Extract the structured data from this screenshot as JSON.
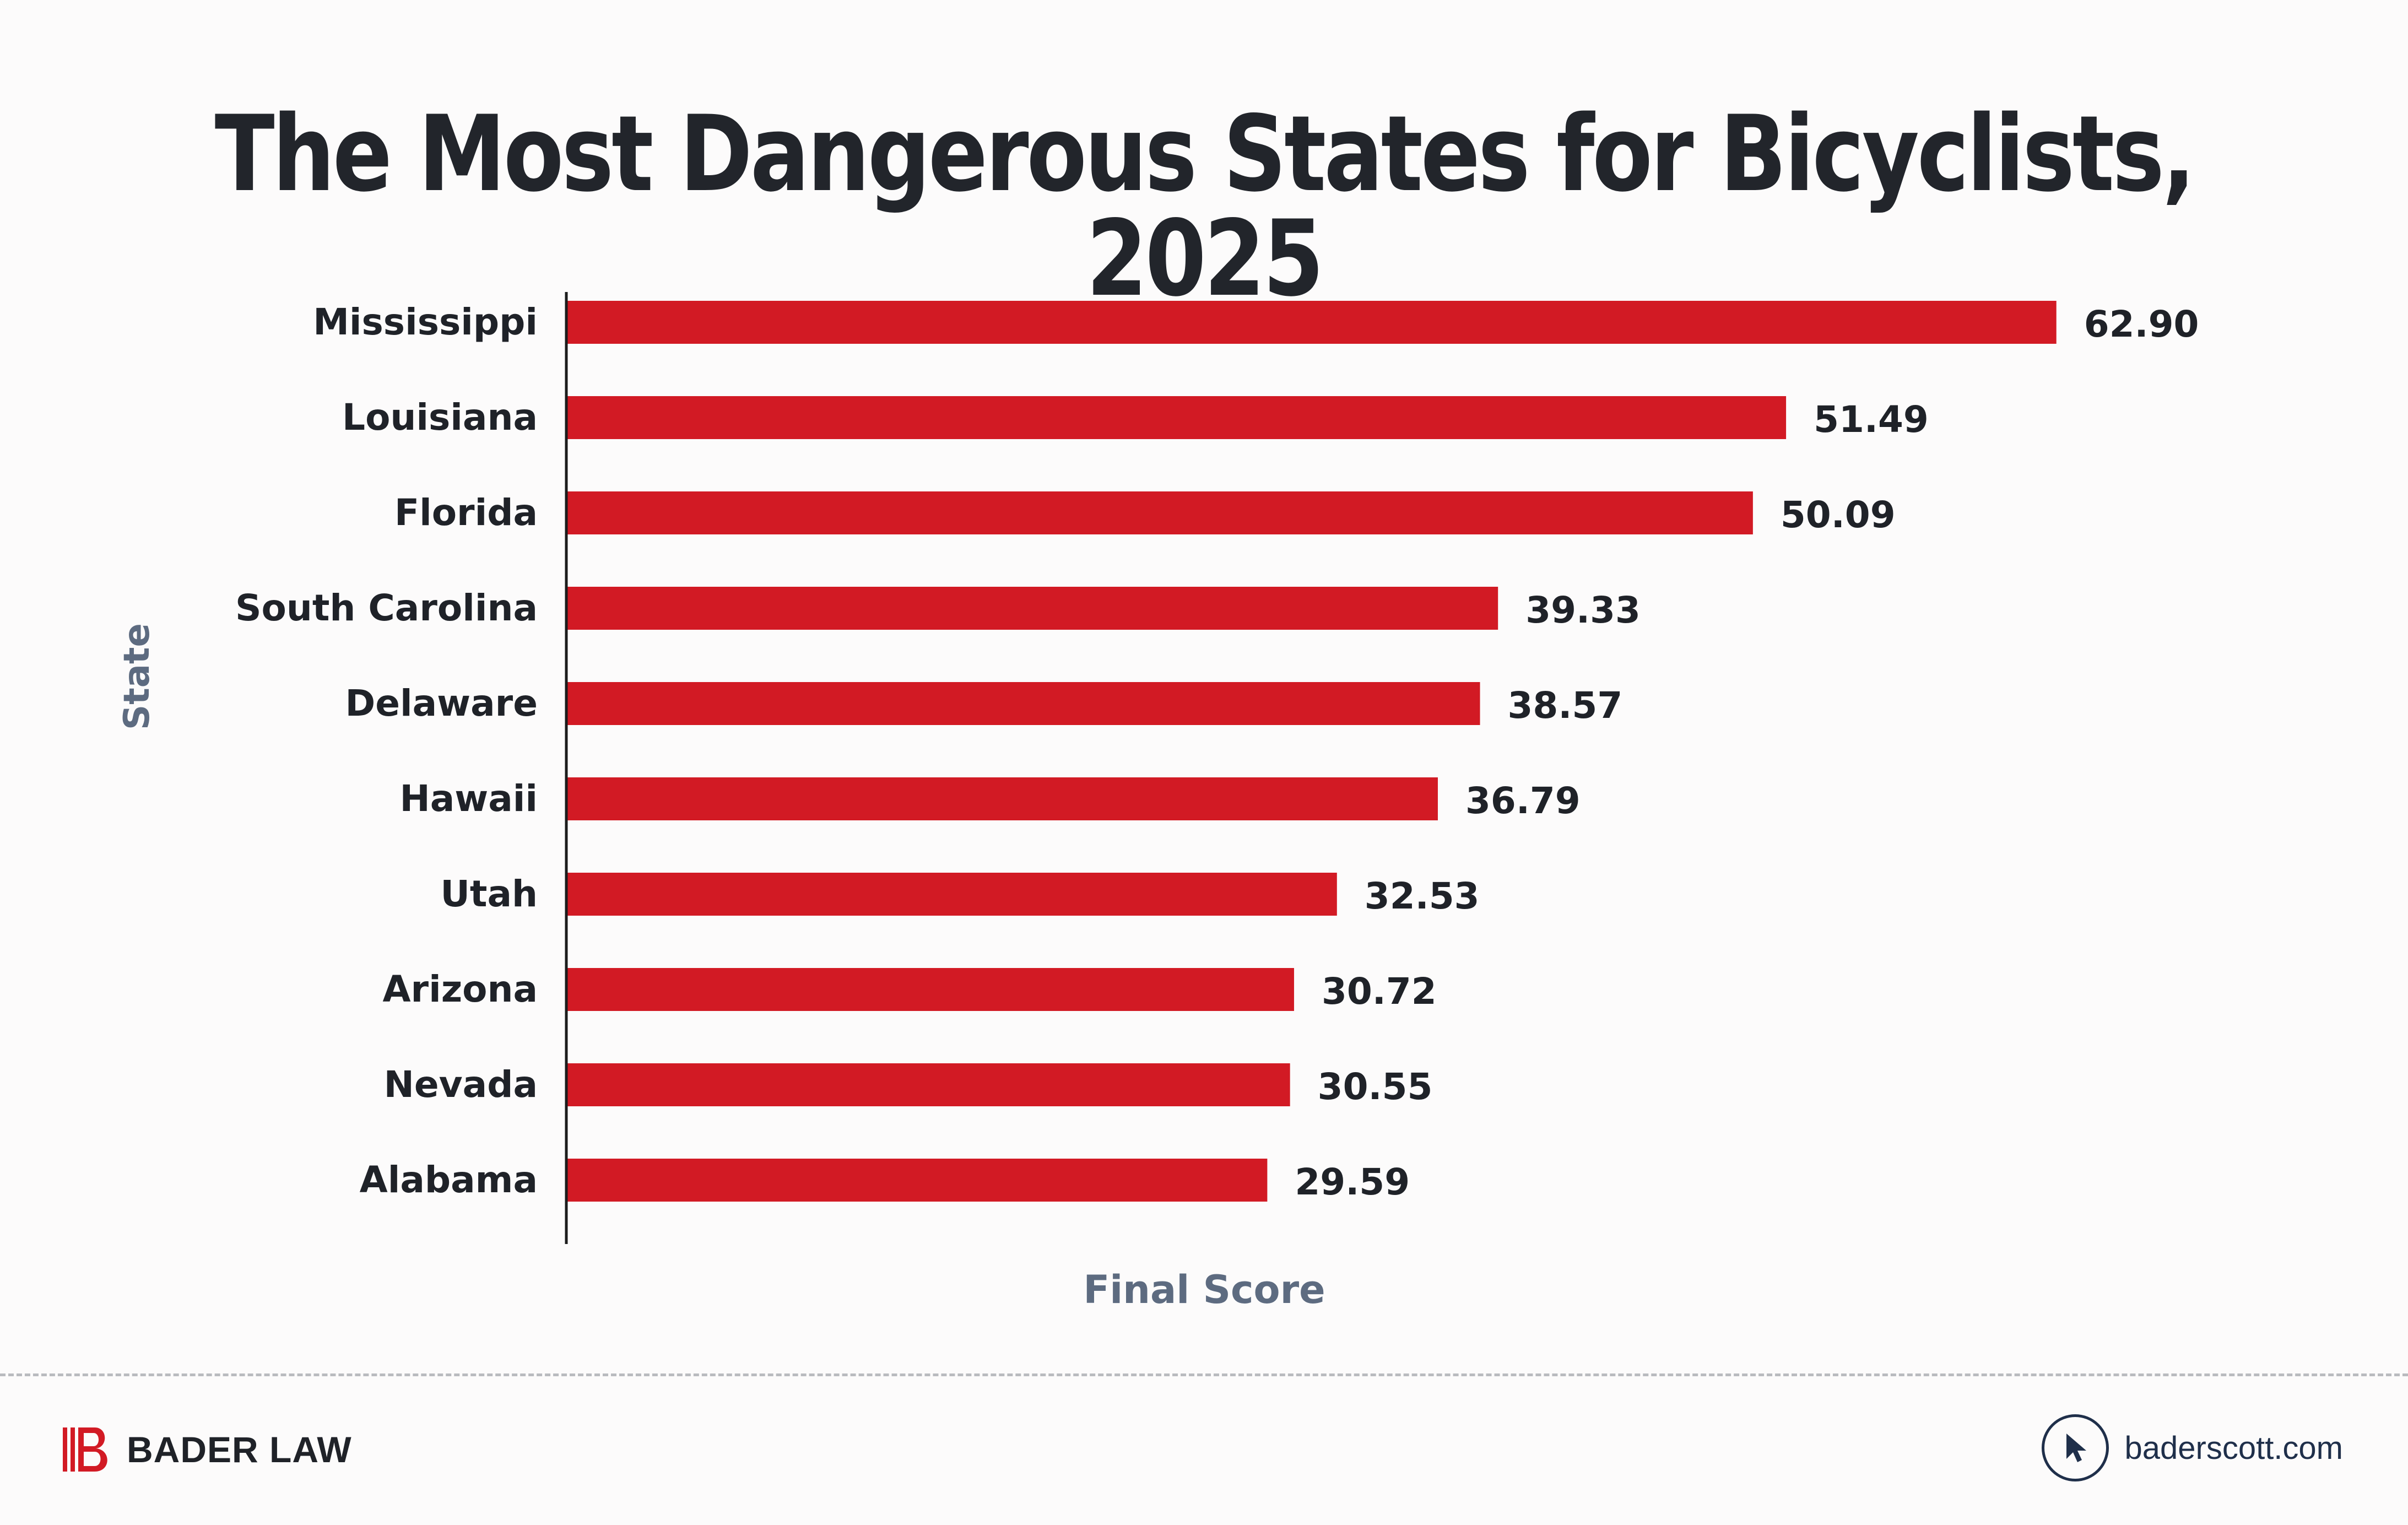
{
  "title": "The Most Dangerous States for Bicyclists, 2025",
  "chart_data": {
    "type": "bar",
    "orientation": "horizontal",
    "title": "The Most Dangerous States for Bicyclists, 2025",
    "xlabel": "Final Score",
    "ylabel": "State",
    "categories": [
      "Mississippi",
      "Louisiana",
      "Florida",
      "South Carolina",
      "Delaware",
      "Hawaii",
      "Utah",
      "Arizona",
      "Nevada",
      "Alabama"
    ],
    "values": [
      62.9,
      51.49,
      50.09,
      39.33,
      38.57,
      36.79,
      32.53,
      30.72,
      30.55,
      29.59
    ],
    "value_labels": [
      "62.90",
      "51.49",
      "50.09",
      "39.33",
      "38.57",
      "36.79",
      "32.53",
      "30.72",
      "30.55",
      "29.59"
    ],
    "xlim": [
      0,
      70
    ],
    "grid": false,
    "bar_color": "#d21a24",
    "axis_label_color": "#5d6b80"
  },
  "footer": {
    "brand_name": "BADER LAW",
    "brand_color": "#d21a24",
    "website": "baderscott.com",
    "cursor_icon": "cursor-pointer-icon",
    "logo_icon": "bader-law-logo-icon"
  }
}
